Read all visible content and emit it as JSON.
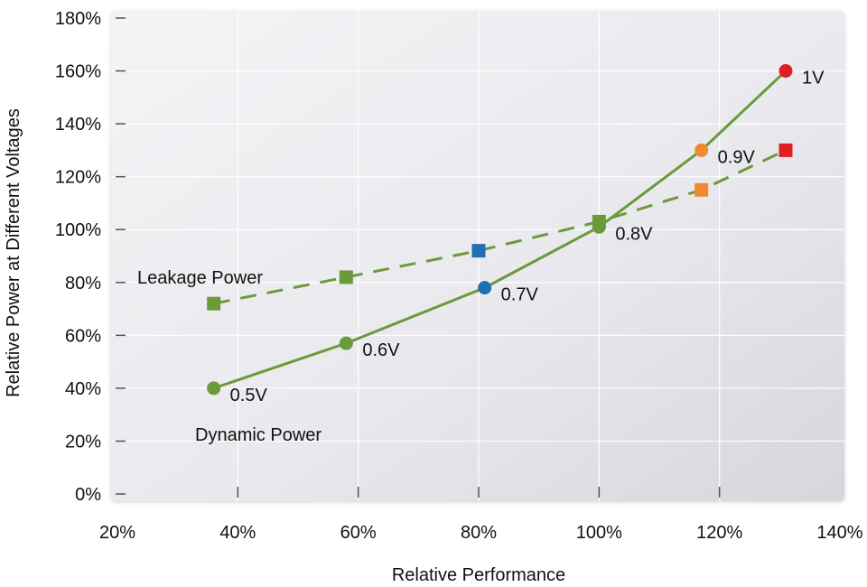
{
  "chart_data": {
    "type": "line",
    "xlabel": "Relative Performance",
    "ylabel": "Relative Power at Different Voltages",
    "xlim": [
      20,
      140
    ],
    "ylim": [
      0,
      180
    ],
    "x_ticks": [
      "20%",
      "40%",
      "60%",
      "80%",
      "100%",
      "120%",
      "140%"
    ],
    "y_ticks": [
      "0%",
      "20%",
      "40%",
      "60%",
      "80%",
      "100%",
      "120%",
      "140%",
      "160%",
      "180%"
    ],
    "grid": true,
    "series": [
      {
        "name": "Dynamic Power",
        "style": "solid",
        "marker": "circle",
        "color": "#6a9a3a",
        "points": [
          {
            "x": 36,
            "y": 40,
            "label": "0.5V",
            "color": "#6a9a3a"
          },
          {
            "x": 58,
            "y": 57,
            "label": "0.6V",
            "color": "#6a9a3a"
          },
          {
            "x": 81,
            "y": 78,
            "label": "0.7V",
            "color": "#1f6fb2"
          },
          {
            "x": 100,
            "y": 101,
            "label": "0.8V",
            "color": "#6a9a3a"
          },
          {
            "x": 117,
            "y": 130,
            "label": "0.9V",
            "color": "#f08a30"
          },
          {
            "x": 131,
            "y": 160,
            "label": "1V",
            "color": "#e02020"
          }
        ]
      },
      {
        "name": "Leakage Power",
        "style": "dashed",
        "marker": "square",
        "color": "#6a9a3a",
        "points": [
          {
            "x": 36,
            "y": 72,
            "color": "#6a9a3a"
          },
          {
            "x": 58,
            "y": 82,
            "color": "#6a9a3a"
          },
          {
            "x": 80,
            "y": 92,
            "color": "#1f6fb2"
          },
          {
            "x": 100,
            "y": 103,
            "color": "#6a9a3a"
          },
          {
            "x": 117,
            "y": 115,
            "color": "#f08a30"
          },
          {
            "x": 131,
            "y": 130,
            "color": "#e02020"
          }
        ]
      }
    ]
  }
}
